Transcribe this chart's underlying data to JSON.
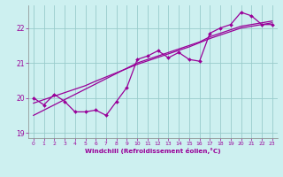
{
  "x": [
    0,
    1,
    2,
    3,
    4,
    5,
    6,
    7,
    8,
    9,
    10,
    11,
    12,
    13,
    14,
    15,
    16,
    17,
    18,
    19,
    20,
    21,
    22,
    23
  ],
  "y_actual": [
    20.0,
    19.8,
    20.1,
    19.9,
    19.6,
    19.6,
    19.65,
    19.5,
    19.9,
    20.3,
    21.1,
    21.2,
    21.35,
    21.15,
    21.3,
    21.1,
    21.05,
    21.85,
    22.0,
    22.1,
    22.45,
    22.35,
    22.1,
    22.1
  ],
  "y_reg1": [
    19.5,
    19.65,
    19.8,
    19.95,
    20.1,
    20.25,
    20.4,
    20.55,
    20.7,
    20.85,
    21.0,
    21.1,
    21.2,
    21.3,
    21.4,
    21.5,
    21.6,
    21.75,
    21.85,
    21.95,
    22.05,
    22.1,
    22.15,
    22.2
  ],
  "y_reg2": [
    19.85,
    19.95,
    20.05,
    20.15,
    20.25,
    20.35,
    20.48,
    20.6,
    20.72,
    20.84,
    20.96,
    21.06,
    21.16,
    21.26,
    21.36,
    21.46,
    21.58,
    21.7,
    21.8,
    21.9,
    22.0,
    22.05,
    22.1,
    22.15
  ],
  "line_color": "#990099",
  "bg_color": "#cdf0f0",
  "grid_color": "#99cccc",
  "xlabel": "Windchill (Refroidissement éolien,°C)",
  "ylim": [
    18.85,
    22.65
  ],
  "xlim": [
    -0.5,
    23.5
  ],
  "yticks": [
    19,
    20,
    21,
    22
  ],
  "xticks": [
    0,
    1,
    2,
    3,
    4,
    5,
    6,
    7,
    8,
    9,
    10,
    11,
    12,
    13,
    14,
    15,
    16,
    17,
    18,
    19,
    20,
    21,
    22,
    23
  ]
}
